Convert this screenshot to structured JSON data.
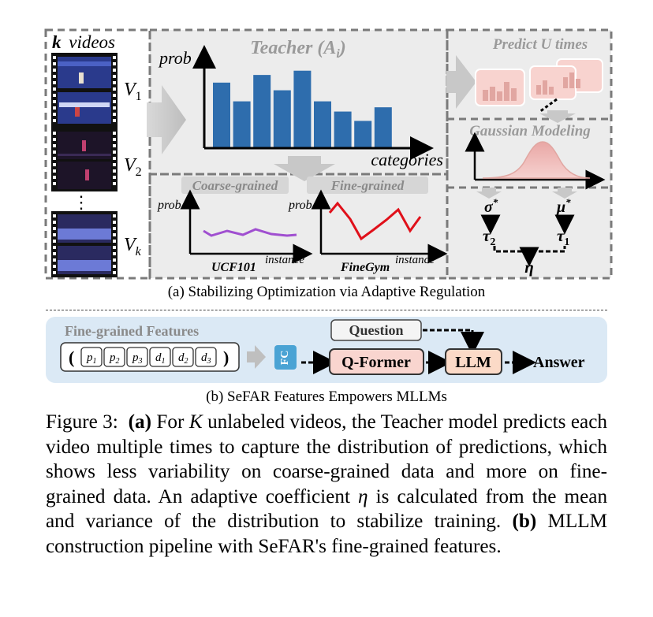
{
  "panel_a": {
    "videos_title_k": "k",
    "videos_title_rest": "videos",
    "video_labels": [
      "V",
      "V",
      "V"
    ],
    "video_subs": [
      "1",
      "2",
      "k"
    ],
    "ellipsis": "⋮",
    "teacher_title": "Teacher (A",
    "teacher_sub": "i",
    "teacher_title_end": ")",
    "prob_label": "prob",
    "categories_label": "categories",
    "bar_values": [
      0.77,
      0.55,
      0.86,
      0.68,
      0.91,
      0.55,
      0.43,
      0.32,
      0.48
    ],
    "coarse_label": "Coarse-grained",
    "fine_label": "Fine-grained",
    "coarse_prob": "prob",
    "fine_prob": "prob",
    "instance_label_1": "instance",
    "instance_label_2": "instance",
    "ucf_label": "UCF101",
    "finegym_label": "FineGym",
    "predict_title": "Predict U times",
    "gaussian_title": "Gaussian Modeling",
    "sigma": "σ",
    "mu": "μ",
    "star": "*",
    "tau": "τ",
    "tau2_sub": "2",
    "tau1_sub": "1",
    "eta": "η",
    "caption": "(a) Stabilizing Optimization via Adaptive Regulation"
  },
  "panel_b": {
    "features_title": "Fine-grained Features",
    "open_paren": "(",
    "close_paren": ")",
    "tokens": [
      {
        "base": "p",
        "sub": "1"
      },
      {
        "base": "p",
        "sub": "2"
      },
      {
        "base": "p",
        "sub": "3"
      },
      {
        "base": "d",
        "sub": "1"
      },
      {
        "base": "d",
        "sub": "2"
      },
      {
        "base": "d",
        "sub": "3"
      }
    ],
    "fc_label": "FC",
    "question_label": "Question",
    "qformer_label": "Q-Former",
    "llm_label": "LLM",
    "answer_label": "Answer",
    "caption": "(b) SeFAR Features Empowers MLLMs"
  },
  "figure_caption": {
    "fig_label": "Figure 3:",
    "part_a": "(a)",
    "text_1": "For",
    "k_var": "K",
    "text_2": "unlabeled videos, the Teacher model predicts each video multiple times to capture the distribution of predictions, which shows less variability on coarse-grained data and more on fine-grained data. An adaptive coefficient",
    "eta_var": "η",
    "text_3": "is calculated from the mean and variance of the distribution to stabilize training.",
    "part_b": "(b)",
    "text_4": "MLLM construction pipeline with SeFAR's fine-grained features."
  },
  "colors": {
    "bar_blue": "#2e6dad",
    "panel_gray": "#ececec",
    "dash_gray": "#7a7a7a",
    "purple_line": "#a04fd0",
    "red_line": "#e0101a",
    "qformer_fill": "#f9d5cf",
    "llm_fill": "#fbdac7",
    "fc_blue": "#4aa3d4",
    "panel_b_fill": "#dbe9f5"
  }
}
